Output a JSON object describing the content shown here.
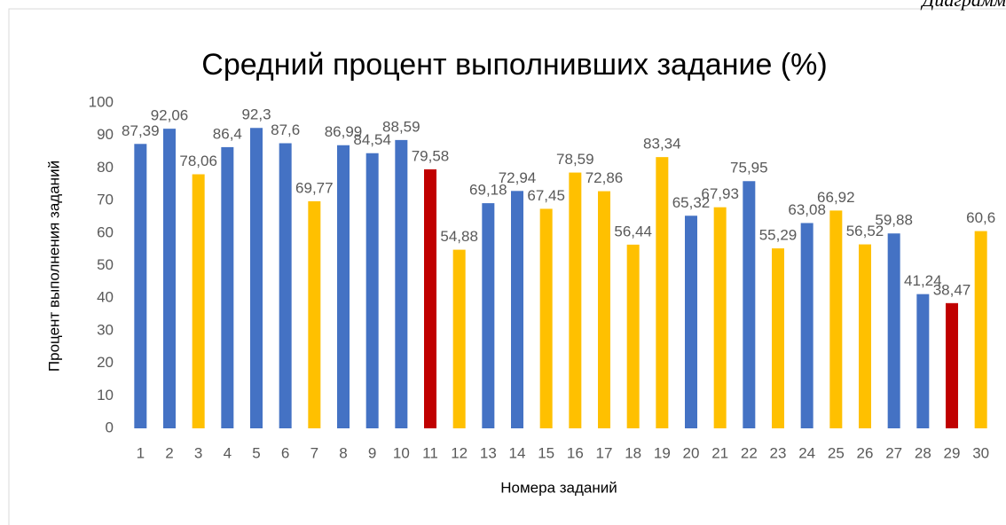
{
  "corner_note": "Диаграмм",
  "chart_data": {
    "type": "bar",
    "title": "Средний процент выполнивших задание (%)",
    "x_label": "Номера заданий",
    "y_label": "Процент выполнения заданий",
    "categories": [
      "1",
      "2",
      "3",
      "4",
      "5",
      "6",
      "7",
      "8",
      "9",
      "10",
      "11",
      "12",
      "13",
      "14",
      "15",
      "16",
      "17",
      "18",
      "19",
      "20",
      "21",
      "22",
      "23",
      "24",
      "25",
      "26",
      "27",
      "28",
      "29",
      "30"
    ],
    "values": [
      87.39,
      92.06,
      78.06,
      86.4,
      92.3,
      87.6,
      69.77,
      86.99,
      84.54,
      88.59,
      79.58,
      54.88,
      69.18,
      72.94,
      67.45,
      78.59,
      72.86,
      56.44,
      83.34,
      65.32,
      67.93,
      75.95,
      55.29,
      63.08,
      66.92,
      56.52,
      59.88,
      41.24,
      38.47,
      60.6
    ],
    "value_labels": [
      "87,39",
      "92,06",
      "78,06",
      "86,4",
      "92,3",
      "87,6",
      "69,77",
      "86,99",
      "84,54",
      "88,59",
      "79,58",
      "54,88",
      "69,18",
      "72,94",
      "67,45",
      "78,59",
      "72,86",
      "56,44",
      "83,34",
      "65,32",
      "67,93",
      "75,95",
      "55,29",
      "63,08",
      "66,92",
      "56,52",
      "59,88",
      "41,24",
      "38,47",
      "60,6"
    ],
    "colors": [
      "#4472c4",
      "#4472c4",
      "#ffc000",
      "#4472c4",
      "#4472c4",
      "#4472c4",
      "#ffc000",
      "#4472c4",
      "#4472c4",
      "#4472c4",
      "#c00000",
      "#ffc000",
      "#4472c4",
      "#4472c4",
      "#ffc000",
      "#ffc000",
      "#ffc000",
      "#ffc000",
      "#ffc000",
      "#4472c4",
      "#ffc000",
      "#4472c4",
      "#ffc000",
      "#4472c4",
      "#ffc000",
      "#ffc000",
      "#4472c4",
      "#4472c4",
      "#c00000",
      "#ffc000"
    ],
    "ylim": [
      0,
      100
    ],
    "yticks": [
      0,
      10,
      20,
      30,
      40,
      50,
      60,
      70,
      80,
      90,
      100
    ],
    "grid": false
  }
}
